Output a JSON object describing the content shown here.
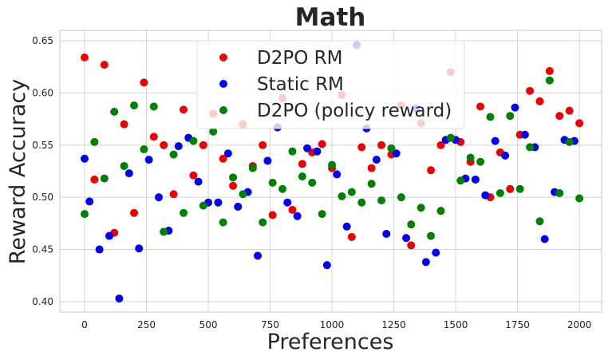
{
  "chart_data": {
    "type": "scatter",
    "title": "Math",
    "xlabel": "Preferences",
    "ylabel": "Reward Accuracy",
    "xlim": [
      -100,
      2090
    ],
    "ylim": [
      0.39,
      0.66
    ],
    "xticks": [
      0,
      250,
      500,
      750,
      1000,
      1250,
      1500,
      1750,
      2000
    ],
    "yticks": [
      0.4,
      0.45,
      0.5,
      0.55,
      0.6,
      0.65
    ],
    "xtick_labels": [
      "0",
      "250",
      "500",
      "750",
      "1000",
      "1250",
      "1500",
      "1750",
      "2000"
    ],
    "ytick_labels": [
      "0.40",
      "0.45",
      "0.50",
      "0.55",
      "0.60",
      "0.65"
    ],
    "grid": true,
    "legend_position": "top-center",
    "series": [
      {
        "name": "D2PO RM",
        "color": "#ee0000",
        "x": [
          0,
          40,
          80,
          120,
          160,
          200,
          240,
          280,
          320,
          360,
          400,
          440,
          480,
          520,
          560,
          600,
          640,
          680,
          720,
          760,
          800,
          840,
          880,
          920,
          960,
          1000,
          1040,
          1080,
          1120,
          1160,
          1200,
          1240,
          1280,
          1320,
          1360,
          1400,
          1440,
          1480,
          1520,
          1560,
          1600,
          1640,
          1680,
          1720,
          1760,
          1800,
          1840,
          1880,
          1920,
          1960,
          2000
        ],
        "y": [
          0.634,
          0.517,
          0.627,
          0.466,
          0.57,
          0.485,
          0.61,
          0.558,
          0.55,
          0.503,
          0.584,
          0.521,
          0.55,
          0.58,
          0.537,
          0.511,
          0.57,
          0.53,
          0.55,
          0.483,
          0.595,
          0.488,
          0.532,
          0.543,
          0.551,
          0.528,
          0.598,
          0.462,
          0.548,
          0.528,
          0.55,
          0.541,
          0.588,
          0.454,
          0.571,
          0.526,
          0.55,
          0.62,
          0.553,
          0.534,
          0.587,
          0.5,
          0.543,
          0.508,
          0.56,
          0.602,
          0.592,
          0.621,
          0.578,
          0.583,
          0.571
        ]
      },
      {
        "name": "Static RM",
        "color": "#0000ee",
        "x": [
          0,
          20,
          60,
          100,
          140,
          180,
          220,
          260,
          300,
          340,
          380,
          420,
          460,
          500,
          540,
          580,
          620,
          660,
          700,
          740,
          780,
          820,
          860,
          900,
          940,
          980,
          1020,
          1060,
          1100,
          1140,
          1180,
          1220,
          1260,
          1300,
          1340,
          1380,
          1420,
          1460,
          1500,
          1540,
          1580,
          1620,
          1660,
          1700,
          1740,
          1780,
          1820,
          1860,
          1900,
          1940,
          1980
        ],
        "y": [
          0.537,
          0.496,
          0.45,
          0.463,
          0.403,
          0.523,
          0.451,
          0.536,
          0.5,
          0.468,
          0.549,
          0.557,
          0.515,
          0.495,
          0.495,
          0.542,
          0.491,
          0.505,
          0.444,
          0.535,
          0.567,
          0.495,
          0.482,
          0.547,
          0.544,
          0.435,
          0.522,
          0.472,
          0.646,
          0.566,
          0.536,
          0.465,
          0.542,
          0.461,
          0.585,
          0.438,
          0.447,
          0.555,
          0.555,
          0.518,
          0.517,
          0.502,
          0.554,
          0.54,
          0.586,
          0.56,
          0.548,
          0.46,
          0.505,
          0.555,
          0.554
        ]
      },
      {
        "name": "D2PO (policy reward)",
        "color": "#008000",
        "x": [
          0,
          40,
          80,
          120,
          160,
          200,
          240,
          280,
          320,
          360,
          400,
          440,
          480,
          520,
          560,
          600,
          640,
          680,
          720,
          760,
          800,
          840,
          880,
          920,
          960,
          1000,
          1040,
          1080,
          1120,
          1160,
          1200,
          1240,
          1280,
          1320,
          1360,
          1400,
          1440,
          1480,
          1520,
          1560,
          1600,
          1640,
          1680,
          1720,
          1760,
          1800,
          1840,
          1880,
          1920,
          1960,
          2000
        ],
        "y": [
          0.484,
          0.553,
          0.518,
          0.582,
          0.53,
          0.588,
          0.546,
          0.587,
          0.467,
          0.541,
          0.485,
          0.554,
          0.492,
          0.563,
          0.476,
          0.519,
          0.503,
          0.528,
          0.476,
          0.514,
          0.508,
          0.544,
          0.52,
          0.514,
          0.484,
          0.531,
          0.501,
          0.505,
          0.495,
          0.513,
          0.497,
          0.547,
          0.5,
          0.474,
          0.49,
          0.463,
          0.487,
          0.557,
          0.516,
          0.538,
          0.534,
          0.577,
          0.504,
          0.578,
          0.508,
          0.548,
          0.477,
          0.612,
          0.504,
          0.553,
          0.499
        ]
      }
    ]
  }
}
